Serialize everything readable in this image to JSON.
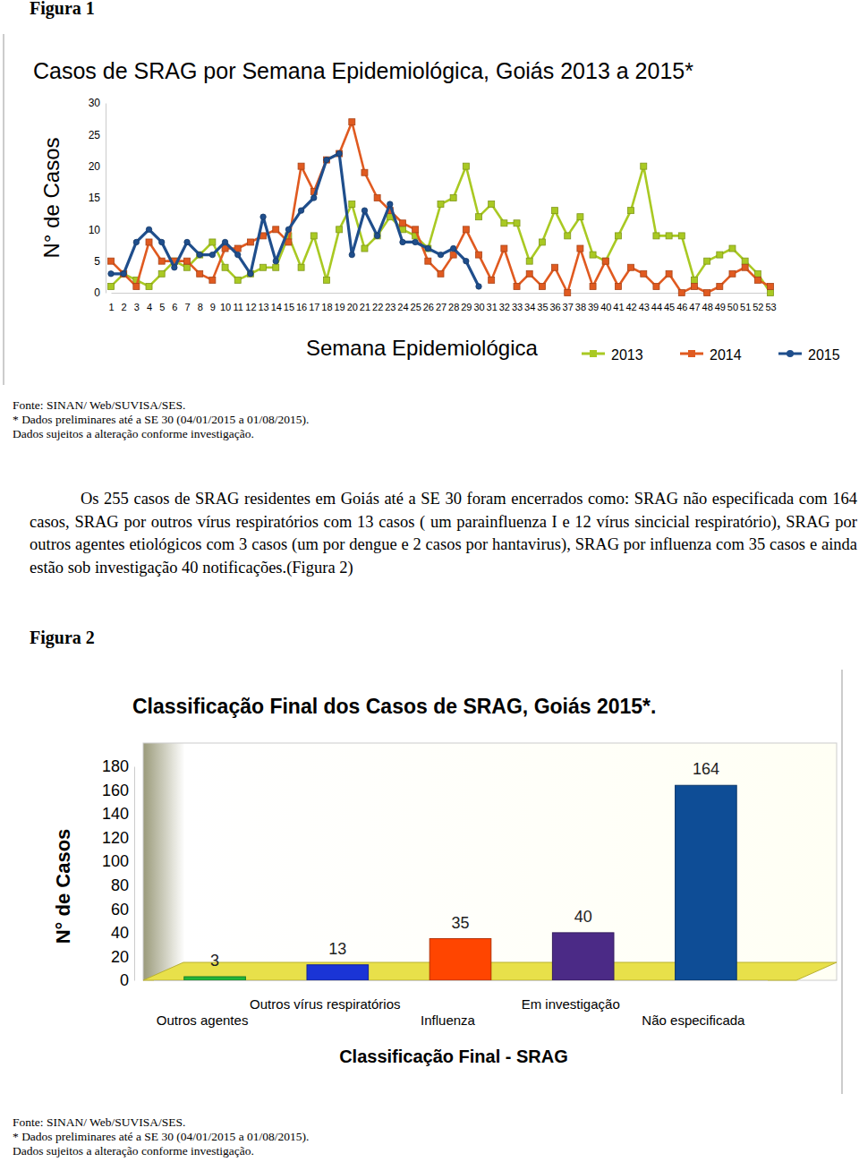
{
  "figures": [
    {
      "label": "Figura 1",
      "source": [
        "Fonte: SINAN/ Web/SUVISA/SES.",
        "* Dados preliminares até a SE 30 (04/01/2015 a 01/08/2015).",
        "Dados sujeitos a alteração conforme investigação."
      ]
    },
    {
      "label": "Figura 2",
      "source": [
        "Fonte: SINAN/ Web/SUVISA/SES.",
        "* Dados preliminares até a SE 30 (04/01/2015 a 01/08/2015).",
        "Dados sujeitos a alteração conforme investigação."
      ]
    }
  ],
  "paragraph": "Os 255 casos de SRAG residentes em Goiás até a SE 30 foram encerrados como: SRAG não especificada com 164 casos, SRAG por outros vírus respiratórios com 13 casos ( um parainfluenza I e 12 vírus sincicial respiratório), SRAG por outros agentes etiológicos com 3 casos (um por dengue e 2 casos por hantavirus), SRAG por influenza com 35 casos e ainda estão sob investigação 40 notificações.(Figura 2)",
  "chart_data": [
    {
      "type": "line",
      "title": "Casos de SRAG por Semana Epidemiológica, Goiás 2013 a 2015*",
      "x_label": "Semana Epidemiológica",
      "y_label": "N° de Casos",
      "categories": [
        "1",
        "2",
        "3",
        "4",
        "5",
        "6",
        "7",
        "8",
        "9",
        "10",
        "11",
        "12",
        "13",
        "14",
        "15",
        "16",
        "17",
        "18",
        "19",
        "20",
        "21",
        "22",
        "23",
        "24",
        "25",
        "26",
        "27",
        "28",
        "29",
        "30",
        "31",
        "32",
        "33",
        "34",
        "35",
        "36",
        "37",
        "38",
        "39",
        "40",
        "41",
        "42",
        "43",
        "44",
        "45",
        "46",
        "47",
        "48",
        "49",
        "50",
        "51",
        "52",
        "53"
      ],
      "series": [
        {
          "name": "2013",
          "color": "#a9c923",
          "marker": "square",
          "values": [
            1,
            3,
            2,
            1,
            3,
            5,
            4,
            6,
            8,
            4,
            2,
            3,
            4,
            4,
            9,
            4,
            9,
            2,
            10,
            14,
            7,
            9,
            12,
            10,
            9,
            7,
            14,
            15,
            20,
            12,
            14,
            11,
            11,
            5,
            8,
            13,
            9,
            12,
            6,
            5,
            9,
            13,
            20,
            9,
            9,
            9,
            2,
            5,
            6,
            7,
            5,
            3,
            0
          ]
        },
        {
          "name": "2014",
          "color": "#e05a20",
          "marker": "square",
          "values": [
            5,
            3,
            1,
            8,
            5,
            5,
            5,
            3,
            2,
            7,
            7,
            8,
            9,
            10,
            8,
            20,
            16,
            21,
            22,
            27,
            19,
            15,
            13,
            11,
            10,
            5,
            3,
            6,
            10,
            6,
            2,
            7,
            1,
            3,
            1,
            4,
            0,
            7,
            1,
            5,
            1,
            4,
            3,
            1,
            3,
            0,
            1,
            0,
            1,
            3,
            4,
            2,
            1
          ]
        },
        {
          "name": "2015",
          "color": "#1f4e8c",
          "marker": "circle",
          "values": [
            3,
            3,
            8,
            10,
            8,
            4,
            8,
            6,
            6,
            8,
            6,
            3,
            12,
            5,
            10,
            13,
            15,
            21,
            22,
            6,
            13,
            9,
            14,
            8,
            8,
            7,
            6,
            7,
            5,
            1,
            null,
            null,
            null,
            null,
            null,
            null,
            null,
            null,
            null,
            null,
            null,
            null,
            null,
            null,
            null,
            null,
            null,
            null,
            null,
            null,
            null,
            null,
            null
          ]
        }
      ],
      "ylim": [
        0,
        30
      ],
      "yticks": [
        0,
        5,
        10,
        15,
        20,
        25,
        30
      ],
      "grid": false,
      "legend": "bottom"
    },
    {
      "type": "bar",
      "title": "Classificação Final dos Casos de SRAG, Goiás 2015*.",
      "x_label": "Classificação Final - SRAG",
      "y_label": "N° de Casos",
      "categories": [
        "Outros agentes",
        "Outros vírus respiratórios",
        "Influenza",
        "Em investigação",
        "Não especificada"
      ],
      "values": [
        3,
        13,
        35,
        40,
        164
      ],
      "colors": [
        "#22b53a",
        "#1a34d6",
        "#ff4500",
        "#4b2a86",
        "#0e4d96"
      ],
      "ylim": [
        0,
        180
      ],
      "yticks": [
        0,
        20,
        40,
        60,
        80,
        100,
        120,
        140,
        160,
        180
      ],
      "grid": false,
      "data_labels": true
    }
  ]
}
